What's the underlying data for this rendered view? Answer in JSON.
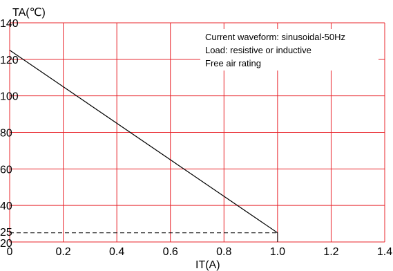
{
  "chart_data": {
    "type": "line",
    "ylabel": "TA(℃)",
    "xlabel": "IT(A)",
    "x_ticks": [
      "0",
      "0.2",
      "0.4",
      "0.6",
      "0.8",
      "1.0",
      "1.2",
      "1.4"
    ],
    "y_ticks": [
      "20",
      "25",
      "40",
      "60",
      "80",
      "100",
      "120",
      "140"
    ],
    "xlim": [
      0,
      1.4
    ],
    "ylim": [
      20,
      140
    ],
    "grid": true,
    "annotations": [
      "Current waveform: sinusoidal-50Hz",
      "Load: resistive or inductive",
      "Free air rating"
    ],
    "series": [
      {
        "x": [
          0,
          1.0
        ],
        "y": [
          125,
          25
        ],
        "style": "solid"
      }
    ],
    "reference_lines": [
      {
        "x": [
          0,
          1.0
        ],
        "y": [
          25,
          25
        ],
        "style": "dashed"
      },
      {
        "x": [
          1.0,
          1.0
        ],
        "y": [
          20,
          25
        ],
        "style": "solid"
      }
    ],
    "colors": {
      "grid": "#e8242b",
      "line": "#000000",
      "background": "#ffffff"
    }
  }
}
